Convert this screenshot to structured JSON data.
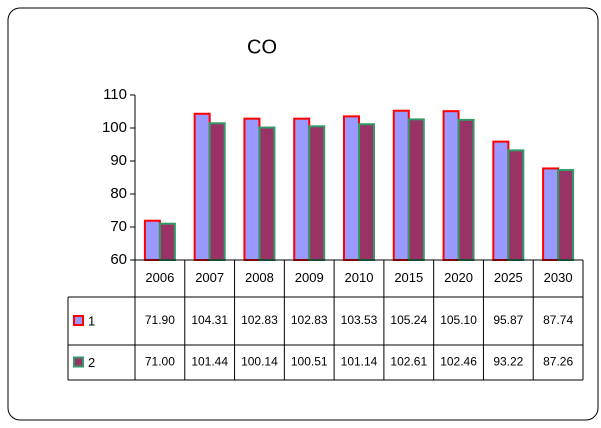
{
  "chart_data": {
    "type": "bar",
    "title": "CO",
    "categories": [
      "2006",
      "2007",
      "2008",
      "2009",
      "2010",
      "2015",
      "2020",
      "2025",
      "2030"
    ],
    "series": [
      {
        "name": "1",
        "color": "#9999ff",
        "edgecolor": "#ff0000",
        "values": [
          71.9,
          104.31,
          102.83,
          102.83,
          103.53,
          105.24,
          105.1,
          95.87,
          87.74
        ],
        "value_labels": [
          "71.90",
          "104.31",
          "102.83",
          "102.83",
          "103.53",
          "105.24",
          "105.10",
          "95.87",
          "87.74"
        ]
      },
      {
        "name": "2",
        "color": "#993366",
        "edgecolor": "#339966",
        "values": [
          71,
          101.44,
          100.14,
          100.51,
          101.14,
          102.61,
          102.46,
          93.22,
          87.26
        ],
        "value_labels": [
          "71.00",
          "101.44",
          "100.14",
          "100.51",
          "101.14",
          "102.61",
          "102.46",
          "93.22",
          "87.26"
        ]
      }
    ],
    "ylim": [
      60,
      110
    ],
    "yticks": [
      60,
      70,
      80,
      90,
      100,
      110
    ],
    "grid": false
  }
}
